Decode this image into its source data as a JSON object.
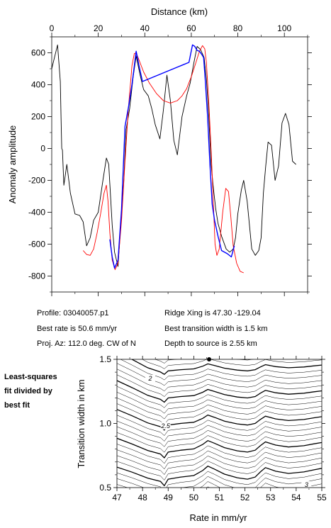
{
  "info": {
    "profile": "Profile: 03040057.p1",
    "ridge": "Ridge Xing is 47.30 -129.04",
    "best_rate": "Best rate is 50.6 mm/yr",
    "best_width": "Best transition width is 1.5 km",
    "proj": "Proj. Az: 112.0 deg. CW of N",
    "depth": "Depth to source is   2.55 km"
  },
  "side_label": [
    "Least-squares",
    "fit divided by",
    "best fit"
  ],
  "colors": {
    "observed": "#000000",
    "model": "#ff0000",
    "fit": "#0000ff"
  },
  "chart_data": [
    {
      "type": "line",
      "title": "",
      "xlabel": "Distance (km)",
      "ylabel": "Anomaly amplitude",
      "xlim": [
        0,
        110
      ],
      "ylim": [
        -900,
        700
      ],
      "xticks": [
        0,
        20,
        40,
        60,
        80,
        100
      ],
      "yticks": [
        600,
        400,
        200,
        0,
        -200,
        -400,
        -600,
        -800
      ],
      "x_axis_position": "top",
      "series": [
        {
          "key": "observed",
          "points": [
            [
              0,
              500
            ],
            [
              2.5,
              650
            ],
            [
              3.7,
              420
            ],
            [
              4,
              200
            ],
            [
              4.3,
              0
            ],
            [
              4.6,
              -10
            ],
            [
              5.2,
              -230
            ],
            [
              6.5,
              -100
            ],
            [
              8,
              -280
            ],
            [
              10,
              -410
            ],
            [
              12,
              -420
            ],
            [
              13.5,
              -460
            ],
            [
              15,
              -610
            ],
            [
              16.5,
              -560
            ],
            [
              18,
              -450
            ],
            [
              20,
              -400
            ],
            [
              22,
              -200
            ],
            [
              23.5,
              -60
            ],
            [
              24.5,
              -100
            ],
            [
              26,
              -480
            ],
            [
              27,
              -650
            ],
            [
              28.5,
              -740
            ],
            [
              29.5,
              -520
            ],
            [
              31,
              -200
            ],
            [
              32,
              120
            ],
            [
              33.5,
              250
            ],
            [
              35,
              450
            ],
            [
              36.3,
              580
            ],
            [
              38,
              460
            ],
            [
              39.5,
              370
            ],
            [
              41.5,
              330
            ],
            [
              43,
              250
            ],
            [
              44.5,
              150
            ],
            [
              46.5,
              60
            ],
            [
              48,
              240
            ],
            [
              49.5,
              460
            ],
            [
              51,
              300
            ],
            [
              52.5,
              50
            ],
            [
              54,
              -40
            ],
            [
              56,
              200
            ],
            [
              58,
              330
            ],
            [
              59.5,
              410
            ],
            [
              61,
              530
            ],
            [
              62.5,
              640
            ],
            [
              64,
              620
            ],
            [
              65.5,
              570
            ],
            [
              66.5,
              440
            ],
            [
              67.5,
              210
            ],
            [
              68.5,
              -100
            ],
            [
              69.5,
              -250
            ],
            [
              70.5,
              -380
            ],
            [
              71.5,
              -470
            ],
            [
              73,
              -550
            ],
            [
              75,
              -630
            ],
            [
              76.5,
              -650
            ],
            [
              78,
              -630
            ],
            [
              79,
              -560
            ],
            [
              80,
              -410
            ],
            [
              81.5,
              -260
            ],
            [
              82.5,
              -200
            ],
            [
              84,
              -330
            ],
            [
              86,
              -630
            ],
            [
              87.5,
              -670
            ],
            [
              89,
              -640
            ],
            [
              90,
              -560
            ],
            [
              91,
              -280
            ],
            [
              92,
              -110
            ],
            [
              93,
              40
            ],
            [
              94.5,
              20
            ],
            [
              96,
              -200
            ],
            [
              97.5,
              -110
            ],
            [
              99,
              160
            ],
            [
              100.5,
              220
            ],
            [
              102,
              150
            ],
            [
              103.5,
              -80
            ],
            [
              105,
              -100
            ]
          ]
        },
        {
          "key": "model",
          "points": [
            [
              13.5,
              -640
            ],
            [
              15,
              -665
            ],
            [
              16.5,
              -670
            ],
            [
              18,
              -630
            ],
            [
              19.5,
              -530
            ],
            [
              21,
              -410
            ],
            [
              22.5,
              -280
            ],
            [
              23.5,
              -230
            ],
            [
              24.2,
              -330
            ],
            [
              25,
              -530
            ],
            [
              26,
              -700
            ],
            [
              27.2,
              -760
            ],
            [
              28.5,
              -720
            ],
            [
              30,
              -450
            ],
            [
              31.5,
              -80
            ],
            [
              33,
              260
            ],
            [
              34.5,
              520
            ],
            [
              35.5,
              595
            ],
            [
              36.3,
              600
            ],
            [
              37.5,
              555
            ],
            [
              39.5,
              480
            ],
            [
              42,
              410
            ],
            [
              45,
              345
            ],
            [
              48,
              300
            ],
            [
              51,
              285
            ],
            [
              54,
              300
            ],
            [
              56,
              330
            ],
            [
              58,
              375
            ],
            [
              60,
              450
            ],
            [
              62,
              540
            ],
            [
              63.5,
              610
            ],
            [
              64.8,
              645
            ],
            [
              65.8,
              625
            ],
            [
              66.5,
              540
            ],
            [
              67.5,
              300
            ],
            [
              68.5,
              0
            ],
            [
              69.5,
              -350
            ],
            [
              70.2,
              -600
            ],
            [
              71,
              -670
            ],
            [
              72,
              -630
            ],
            [
              73.5,
              -400
            ],
            [
              74.8,
              -250
            ],
            [
              76,
              -270
            ],
            [
              77,
              -430
            ],
            [
              78,
              -610
            ],
            [
              79.5,
              -720
            ],
            [
              81,
              -770
            ],
            [
              82.5,
              -780
            ]
          ]
        },
        {
          "key": "fit",
          "points": [
            [
              25,
              -570
            ],
            [
              26,
              -680
            ],
            [
              27,
              -750
            ],
            [
              28.5,
              -700
            ],
            [
              30,
              -380
            ],
            [
              31.5,
              140
            ],
            [
              33,
              260
            ],
            [
              34.5,
              400
            ],
            [
              36.3,
              610
            ],
            [
              37.5,
              520
            ],
            [
              39,
              420
            ],
            [
              59,
              540
            ],
            [
              60.5,
              650
            ],
            [
              61.5,
              640
            ],
            [
              62.5,
              615
            ],
            [
              63.5,
              610
            ],
            [
              64.5,
              590
            ],
            [
              65.3,
              570
            ],
            [
              66,
              430
            ],
            [
              67,
              200
            ],
            [
              68,
              -100
            ],
            [
              69,
              -350
            ],
            [
              70,
              -450
            ],
            [
              71.5,
              -550
            ],
            [
              73,
              -640
            ],
            [
              75.5,
              -660
            ],
            [
              77.2,
              -680
            ],
            [
              78.5,
              -610
            ]
          ]
        }
      ]
    },
    {
      "type": "contour",
      "title": "",
      "xlabel": "Rate in mm/yr",
      "ylabel": "Transition width in km",
      "xlim": [
        47,
        55
      ],
      "ylim": [
        0.5,
        1.5
      ],
      "xticks": [
        47,
        48,
        49,
        50,
        51,
        52,
        53,
        54,
        55
      ],
      "yticks": [
        0.5,
        1.0,
        1.5
      ],
      "best_point": [
        50.6,
        1.5
      ],
      "contour_labels": [
        {
          "text": "2",
          "x": 48.3,
          "y": 1.335
        },
        {
          "text": "2.5",
          "x": 48.9,
          "y": 0.965
        },
        {
          "text": "3",
          "x": 54.4,
          "y": 0.505
        }
      ]
    }
  ]
}
